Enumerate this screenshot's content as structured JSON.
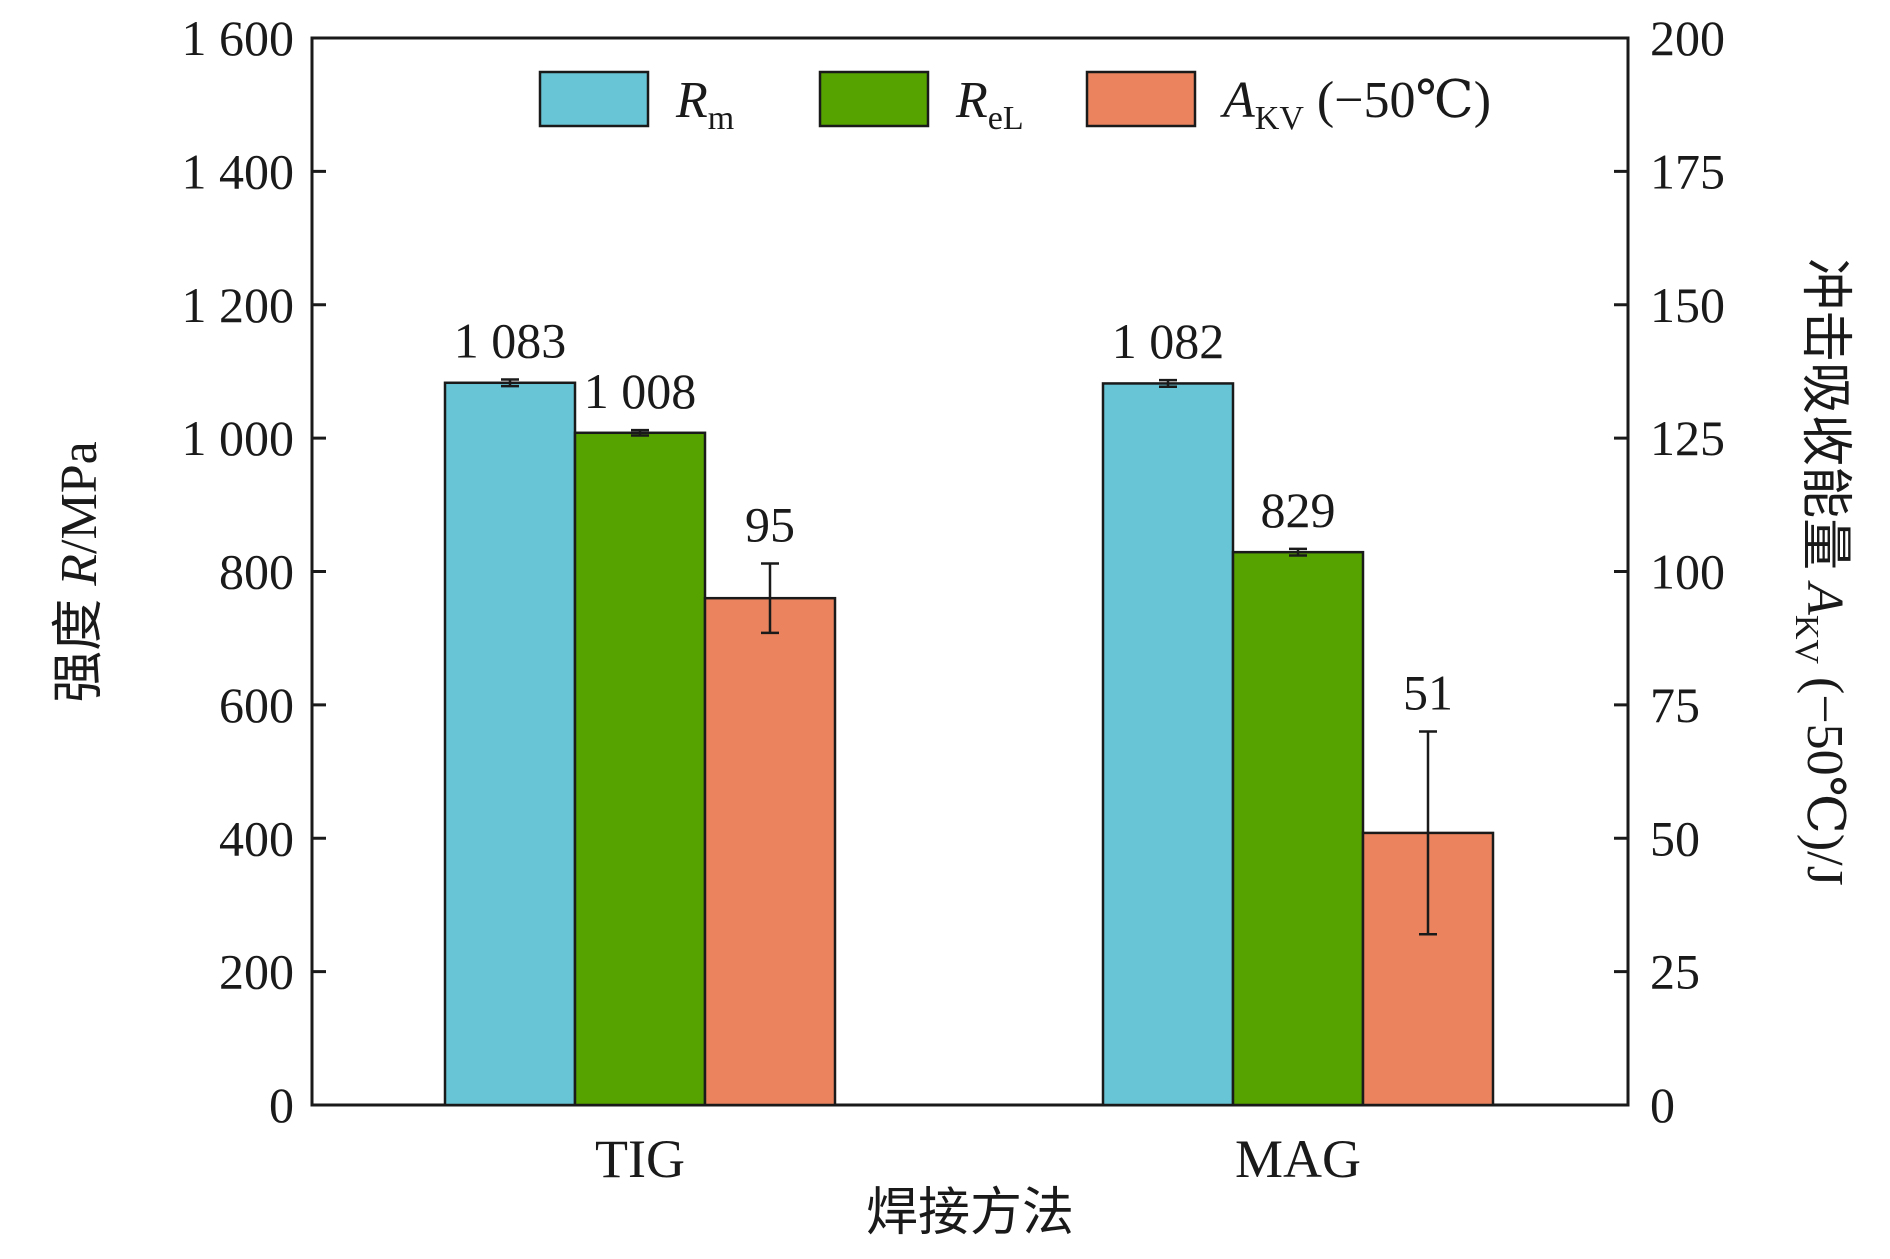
{
  "chart_data": {
    "type": "bar",
    "categories": [
      "TIG",
      "MAG"
    ],
    "xlabel": "焊接方法",
    "ylabel": {
      "prefix": "强度 ",
      "var": "R",
      "unit": "/MPa"
    },
    "y2label": {
      "prefix": "冲击吸收能量 ",
      "var": "A",
      "sub": "KV",
      "suffix": " (−50℃)/J"
    },
    "ylim": [
      0,
      1600
    ],
    "y2lim": [
      0,
      200
    ],
    "yticks": [
      0,
      200,
      400,
      600,
      800,
      1000,
      1200,
      1400,
      1600
    ],
    "ytick_labels": [
      "0",
      "200",
      "400",
      "600",
      "800",
      "1 000",
      "1 200",
      "1 400",
      "1 600"
    ],
    "y2ticks": [
      0,
      25,
      50,
      75,
      100,
      125,
      150,
      175,
      200
    ],
    "y2tick_labels": [
      "0",
      "25",
      "50",
      "75",
      "100",
      "125",
      "150",
      "175",
      "200"
    ],
    "legend_position": "top",
    "series": [
      {
        "name": "Rm",
        "legend_var": "R",
        "legend_sub": "m",
        "legend_suffix": "",
        "axis": "left",
        "color": "#67c5d6",
        "values": [
          1083,
          1082
        ],
        "errors": [
          5,
          5
        ],
        "value_labels": [
          "1 083",
          "1 082"
        ]
      },
      {
        "name": "ReL",
        "legend_var": "R",
        "legend_sub": "eL",
        "legend_suffix": "",
        "axis": "left",
        "color": "#56a300",
        "values": [
          1008,
          829
        ],
        "errors": [
          4,
          5
        ],
        "value_labels": [
          "1 008",
          "829"
        ]
      },
      {
        "name": "AKV (−50℃)",
        "legend_var": "A",
        "legend_sub": "KV",
        "legend_suffix": " (−50℃)",
        "axis": "right",
        "color": "#eb845e",
        "values": [
          95,
          51
        ],
        "errors": [
          6.5,
          19
        ],
        "value_labels": [
          "95",
          "51"
        ]
      }
    ]
  }
}
